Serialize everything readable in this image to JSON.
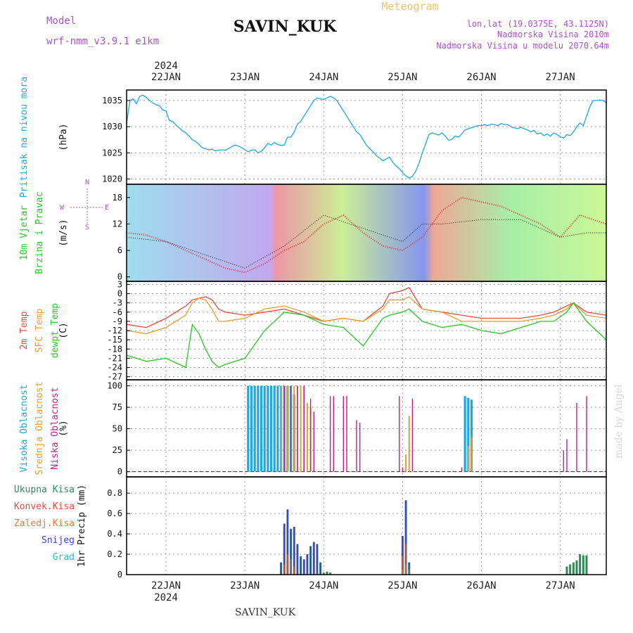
{
  "header": {
    "model_label": "Model",
    "model_name": "wrf-nmm_v3.9.1 e1km",
    "station": "SAVIN_KUK",
    "product": "Meteogram",
    "lonlat": "lon,lat (19.0375E, 43.1125N)",
    "elevation": "Nadmorska Visina 2010m",
    "model_elevation": "Nadmorska Visina u modelu 2070.64m",
    "footer_station": "SAVIN_KUK",
    "watermark": "made by Angel"
  },
  "time_axis": {
    "year_label": "2024",
    "day_labels": [
      "22JAN",
      "23JAN",
      "24JAN",
      "25JAN",
      "26JAN",
      "27JAN"
    ],
    "day_start_hours": [
      12,
      36,
      60,
      84,
      108,
      132
    ],
    "range_hours": [
      0,
      146
    ]
  },
  "colors": {
    "pressure": "#1ea7e6",
    "temp2m": "#e84a3c",
    "sfc_temp": "#e0a030",
    "dewpoint": "#26c826",
    "cloud_high": "#1ea7e6",
    "cloud_mid": "#e0a030",
    "cloud_low": "#c0208c",
    "precip_total": "#2e8b57",
    "precip_conv": "#e84a3c",
    "precip_frozen": "#f07830",
    "precip_snow": "#4040d0",
    "precip_hail": "#20c0c0",
    "header_purple": "#b050d0",
    "header_orange": "#f0c070"
  },
  "chart_data": [
    {
      "id": "pressure",
      "type": "line",
      "ylabel": [
        "Pritisak na nivou mora",
        "(hPa)"
      ],
      "ylim": [
        1019,
        1037
      ],
      "yticks": [
        1020,
        1025,
        1030,
        1035
      ],
      "grid": true,
      "series": [
        {
          "x": [
            0,
            1,
            2,
            3,
            4,
            5,
            6,
            7,
            8,
            9,
            10,
            11,
            12,
            13,
            14,
            15,
            16,
            17,
            18,
            19,
            20,
            21,
            22,
            23,
            24,
            25,
            26,
            27,
            28,
            29,
            30,
            31,
            32,
            33,
            34,
            35,
            36,
            37,
            38,
            39,
            40,
            41,
            42,
            43,
            44,
            45,
            46,
            47,
            48,
            49,
            50,
            51,
            52,
            53,
            54,
            55,
            56,
            57,
            58,
            59,
            60,
            61,
            62,
            63,
            64,
            65,
            66,
            67,
            68,
            69,
            70,
            71,
            72,
            73,
            74,
            75,
            76,
            77,
            78,
            79,
            80,
            81,
            82,
            83,
            84,
            85,
            86,
            87,
            88,
            89,
            90,
            91,
            92,
            93,
            94,
            95,
            96,
            97,
            98,
            99,
            100,
            101,
            102,
            103,
            104,
            105,
            106,
            107,
            108,
            109,
            110,
            111,
            112,
            113,
            114,
            115,
            116,
            117,
            118,
            119,
            120,
            121,
            122,
            123,
            124,
            125,
            126,
            127,
            128,
            129,
            130,
            131,
            132,
            133,
            134,
            135,
            136,
            137,
            138,
            139,
            140,
            141,
            142,
            143,
            144,
            145,
            146
          ],
          "y": [
            1030.5,
            1035,
            1035.3,
            1034.4,
            1035.8,
            1036,
            1035.6,
            1035,
            1034.5,
            1034.2,
            1034,
            1033.2,
            1033,
            1031.2,
            1031,
            1030.3,
            1029.8,
            1029.2,
            1028.8,
            1028.2,
            1027.5,
            1027.2,
            1026.6,
            1026,
            1025.8,
            1025.6,
            1025.7,
            1025.4,
            1025.5,
            1025.6,
            1025.5,
            1025.8,
            1026.2,
            1026.5,
            1026.3,
            1026.0,
            1025.6,
            1025.2,
            1025.5,
            1025.6,
            1025,
            1025.3,
            1026,
            1026.8,
            1026.5,
            1027,
            1026.6,
            1026.4,
            1026.5,
            1028,
            1028,
            1029,
            1030.5,
            1031,
            1032,
            1033,
            1034,
            1035,
            1035.5,
            1035.3,
            1035.2,
            1035.5,
            1035.8,
            1035.5,
            1035,
            1034,
            1033,
            1032,
            1031,
            1030,
            1029,
            1028.5,
            1027.5,
            1026.5,
            1025.8,
            1025.2,
            1024.5,
            1024,
            1023.5,
            1023.8,
            1024.2,
            1023.2,
            1022.5,
            1022,
            1021.2,
            1020.6,
            1020.2,
            1020.5,
            1021.5,
            1023,
            1025,
            1026.7,
            1028.5,
            1028.8,
            1028.6,
            1028.4,
            1028.8,
            1028.2,
            1027.4,
            1027.6,
            1028.2,
            1028,
            1028.6,
            1029.4,
            1029.6,
            1029.8,
            1030,
            1030.2,
            1030.2,
            1030.4,
            1030.2,
            1030.5,
            1030.4,
            1030.2,
            1030.6,
            1030.4,
            1030.4,
            1030.0,
            1029.8,
            1029.6,
            1029.9,
            1029.6,
            1029.4,
            1029.0,
            1029.3,
            1028.6,
            1028.8,
            1028.3,
            1028.6,
            1028.2,
            1028.8,
            1028.5,
            1028.1,
            1027.8,
            1028.5,
            1028.3,
            1029,
            1030,
            1030.7,
            1030.2,
            1032,
            1033.8,
            1035,
            1035,
            1035.1,
            1035,
            1034.6
          ]
        }
      ]
    },
    {
      "id": "wind",
      "type": "line",
      "ylabel": [
        "10m Vjetar",
        "Brzina i Pravac",
        "(m/s)"
      ],
      "direction_legend": [
        "N",
        "W",
        "E",
        "S"
      ],
      "ylim": [
        -1,
        21
      ],
      "yticks": [
        0,
        6,
        12,
        18
      ],
      "grid": false,
      "background": {
        "type": "heatmap",
        "note": "wind field colours"
      },
      "series": [
        {
          "name": "speed",
          "style": "red-dotted",
          "x": [
            0,
            6,
            12,
            18,
            24,
            30,
            36,
            42,
            48,
            54,
            60,
            66,
            72,
            78,
            84,
            90,
            96,
            102,
            108,
            114,
            120,
            126,
            132,
            138,
            146
          ],
          "y": [
            10,
            9.5,
            8,
            6,
            4,
            2,
            1,
            3,
            6,
            8,
            12,
            14,
            10,
            7,
            6,
            9,
            15,
            18,
            17,
            16,
            14,
            12,
            9,
            14,
            12
          ]
        },
        {
          "name": "gust",
          "style": "black-dotted",
          "x": [
            0,
            12,
            24,
            36,
            48,
            60,
            72,
            84,
            90,
            96,
            108,
            120,
            132,
            140,
            146
          ],
          "y": [
            9,
            8,
            5,
            2,
            7,
            14,
            11,
            8,
            12,
            12,
            13,
            13,
            9,
            10,
            10
          ]
        }
      ]
    },
    {
      "id": "temperature",
      "type": "line",
      "ylabel": [
        "2m Temp",
        "SFC Temp",
        "dewpt Temp",
        "(C)"
      ],
      "ylim": [
        -28,
        4
      ],
      "yticks": [
        -27,
        -24,
        -21,
        -18,
        -15,
        -12,
        -9,
        -6,
        -3,
        0,
        3
      ],
      "grid": true,
      "series": [
        {
          "name": "2m Temp",
          "x": [
            0,
            6,
            12,
            18,
            20,
            22,
            24,
            26,
            28,
            30,
            36,
            42,
            48,
            54,
            60,
            66,
            72,
            78,
            80,
            84,
            86,
            90,
            96,
            102,
            108,
            114,
            120,
            126,
            130,
            134,
            136,
            140,
            146
          ],
          "y": [
            -10,
            -11,
            -8,
            -4,
            -2,
            -1.5,
            -1,
            -2,
            -5,
            -6,
            -7,
            -6,
            -5,
            -7,
            -9,
            -8,
            -9,
            -4,
            0,
            1,
            2,
            -5,
            -6,
            -7,
            -8,
            -8,
            -8,
            -7,
            -6,
            -4,
            -3,
            -6,
            -7
          ]
        },
        {
          "name": "SFC Temp",
          "x": [
            0,
            6,
            12,
            18,
            20,
            22,
            24,
            26,
            28,
            30,
            36,
            42,
            48,
            54,
            60,
            66,
            72,
            78,
            80,
            84,
            86,
            90,
            96,
            102,
            108,
            114,
            120,
            126,
            130,
            134,
            136,
            140,
            146
          ],
          "y": [
            -12,
            -13,
            -11,
            -7,
            -3,
            -1.5,
            -2,
            -5,
            -9,
            -9,
            -8,
            -5,
            -4,
            -6,
            -9,
            -8,
            -9,
            -5,
            -2,
            -2,
            -1,
            -5,
            -6,
            -9,
            -9,
            -9,
            -9,
            -8,
            -7,
            -5,
            -3,
            -7,
            -8
          ]
        },
        {
          "name": "dewpt Temp",
          "x": [
            0,
            6,
            12,
            18,
            20,
            22,
            24,
            26,
            28,
            30,
            36,
            42,
            48,
            54,
            60,
            66,
            72,
            78,
            80,
            84,
            86,
            90,
            96,
            102,
            108,
            114,
            120,
            126,
            130,
            134,
            136,
            140,
            146
          ],
          "y": [
            -20,
            -22,
            -21,
            -24,
            -10,
            -13,
            -18,
            -22,
            -24,
            -23,
            -21,
            -12,
            -6,
            -7,
            -10,
            -11,
            -17,
            -8,
            -7,
            -6,
            -5,
            -9,
            -11,
            -10,
            -12,
            -13,
            -11,
            -9,
            -9,
            -6,
            -3,
            -9,
            -15
          ]
        }
      ]
    },
    {
      "id": "clouds",
      "type": "bar",
      "ylabel": [
        "Visoka Oblacnost",
        "Srednja Oblacnost",
        "Niska Oblacnost",
        "(%)"
      ],
      "ylim": [
        -6,
        107
      ],
      "yticks": [
        0,
        25,
        50,
        75,
        100
      ],
      "grid": true,
      "series": [
        {
          "name": "Visoka Oblacnost",
          "x": [
            37,
            38,
            39,
            40,
            41,
            42,
            43,
            44,
            45,
            46,
            47,
            48,
            49,
            50,
            51,
            103,
            104,
            105
          ],
          "y": [
            100,
            100,
            100,
            100,
            100,
            100,
            100,
            100,
            100,
            100,
            100,
            100,
            100,
            100,
            90,
            88,
            86,
            84
          ]
        },
        {
          "name": "Srednja Oblacnost",
          "x": [
            47,
            48,
            49,
            50,
            51,
            52,
            53,
            54,
            55,
            56,
            85,
            86,
            104,
            105
          ],
          "y": [
            100,
            100,
            100,
            100,
            100,
            100,
            100,
            100,
            80,
            75,
            20,
            65,
            30,
            40
          ]
        },
        {
          "name": "Niska Oblacnost",
          "x": [
            48,
            50,
            52,
            54,
            56,
            57,
            62,
            63,
            66,
            67,
            70,
            71,
            83,
            84,
            87,
            102,
            133,
            134,
            137,
            140
          ],
          "y": [
            100,
            100,
            100,
            100,
            85,
            70,
            88,
            88,
            88,
            88,
            60,
            57,
            88,
            5,
            85,
            5,
            25,
            38,
            80,
            88
          ]
        }
      ]
    },
    {
      "id": "precip",
      "type": "bar",
      "ylabel": [
        "1hr Precip (mm)"
      ],
      "legend": [
        "Ukupna Kisa",
        "Konvek.Kisa",
        "Zaledj.Kisa",
        "Snijeg",
        "Grad"
      ],
      "ylim": [
        0,
        0.96
      ],
      "yticks": [
        0,
        0.2,
        0.4,
        0.6,
        0.8
      ],
      "grid": true,
      "series": [
        {
          "name": "Ukupna Kisa",
          "x": [
            47,
            48,
            49,
            50,
            51,
            52,
            53,
            54,
            55,
            56,
            57,
            58,
            59,
            60,
            61,
            62,
            84,
            85,
            86,
            134,
            135,
            136,
            137,
            138,
            139,
            140
          ],
          "y": [
            0.12,
            0.5,
            0.64,
            0.45,
            0.47,
            0.3,
            0.18,
            0.15,
            0.2,
            0.28,
            0.32,
            0.3,
            0.12,
            0.02,
            0.03,
            0.02,
            0.38,
            0.73,
            0.12,
            0.08,
            0.1,
            0.12,
            0.14,
            0.2,
            0.19,
            0.19
          ]
        },
        {
          "name": "Snijeg",
          "x": [
            47,
            48,
            49,
            50,
            51,
            52,
            53,
            54,
            55,
            56,
            57,
            58,
            59,
            84,
            85,
            86
          ],
          "y": [
            0.12,
            0.5,
            0.64,
            0.45,
            0.47,
            0.3,
            0.18,
            0.15,
            0.2,
            0.28,
            0.32,
            0.3,
            0.12,
            0.38,
            0.73,
            0.12
          ]
        },
        {
          "name": "Konvek.Kisa",
          "x": [
            48,
            49,
            50,
            51,
            84,
            85,
            86
          ],
          "y": [
            0.1,
            0.2,
            0.15,
            0.08,
            0.18,
            0.3,
            0.05
          ]
        },
        {
          "name": "Zaledj.Kisa",
          "x": [
            84,
            85
          ],
          "y": [
            0.05,
            0.1
          ]
        }
      ]
    }
  ]
}
